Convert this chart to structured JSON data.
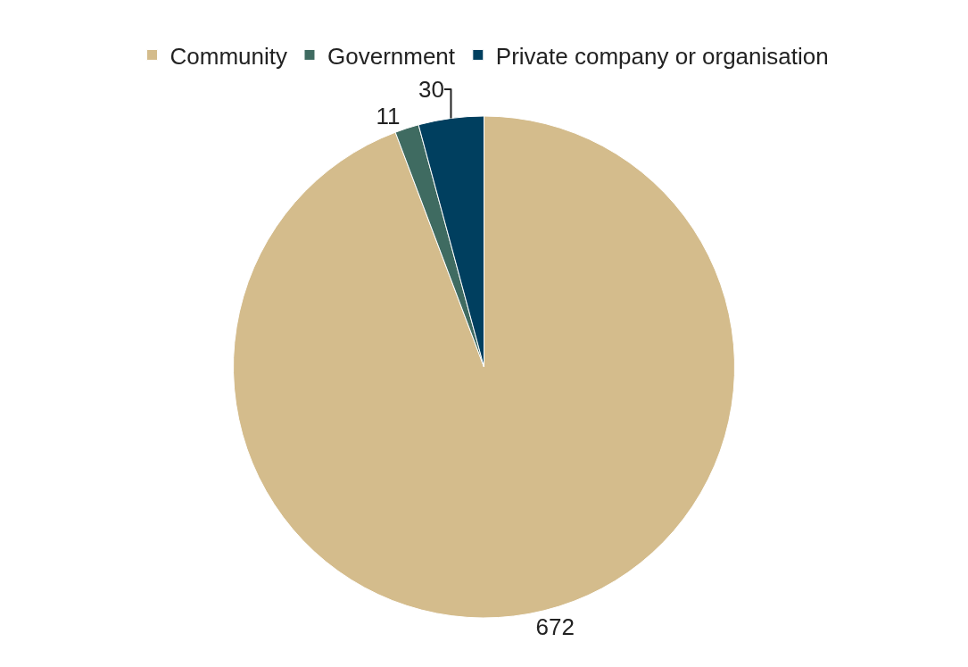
{
  "chart_data": {
    "type": "pie",
    "categories": [
      "Community",
      "Government",
      "Private company or organisation"
    ],
    "values": [
      672,
      11,
      30
    ],
    "colors": [
      "#d4bc8c",
      "#3f6b61",
      "#003f5f"
    ],
    "data_labels": true,
    "legend": "top"
  }
}
